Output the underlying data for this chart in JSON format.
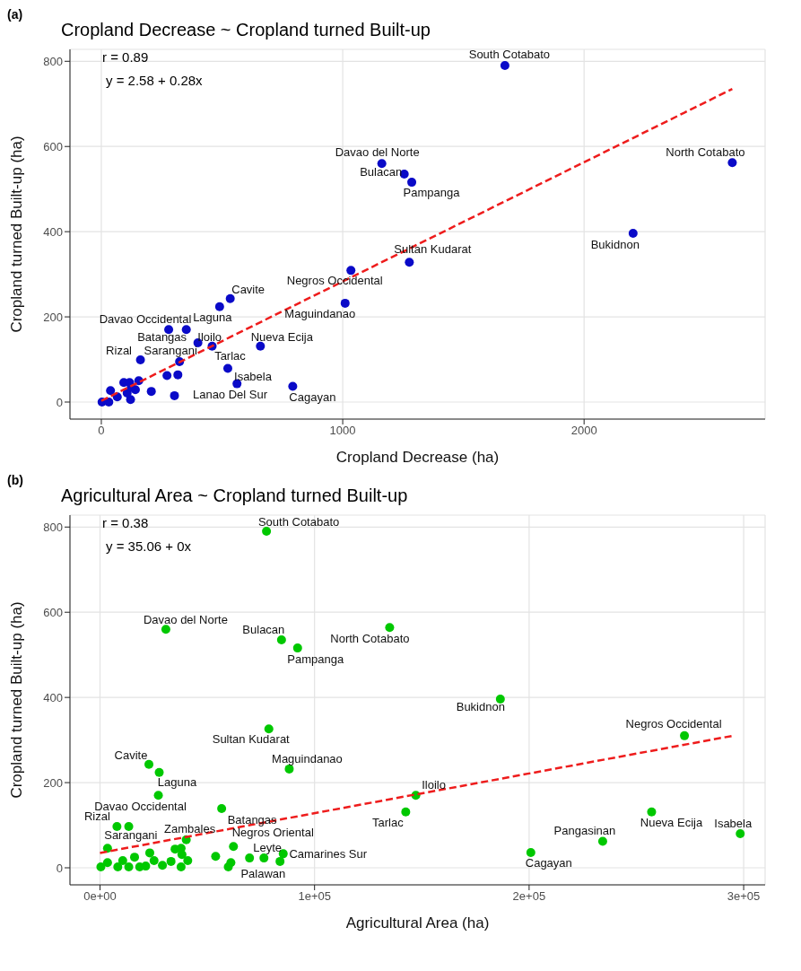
{
  "chart_data": [
    {
      "type": "scatter",
      "title": "Cropland Decrease ~ Cropland turned Built-up",
      "xlabel": "Cropland Decrease (ha)",
      "ylabel": "Cropland turned Built-up (ha)",
      "annotations": [
        "(a)",
        "r = 0.89",
        "y = 2.58 + 0.28x"
      ],
      "xlim": [
        -130,
        2750
      ],
      "ylim": [
        -40,
        828
      ],
      "xticks": [
        0,
        1000,
        2000
      ],
      "yticks": [
        0,
        200,
        400,
        600,
        800
      ],
      "grid": true,
      "marker": "circle",
      "series": [
        {
          "type": "scatter",
          "color": "#0a0ac8",
          "x": [
            1672,
            1162,
            1255,
            1286,
            2614,
            2203,
            1276,
            1034,
            1010,
            534,
            490,
            279,
            352,
            400,
            459,
            659,
            162,
            324,
            524,
            793,
            303,
            562,
            272,
            317,
            207,
            155,
            93,
            117,
            141,
            121,
            38,
            3,
            31,
            107,
            66,
            124
          ],
          "values": [
            790,
            560,
            535,
            516,
            562,
            396,
            328,
            309,
            232,
            243,
            224,
            170,
            170,
            139,
            131,
            131,
            99,
            95,
            79,
            37,
            15,
            43,
            62,
            64,
            25,
            50,
            46,
            46,
            29,
            6,
            27,
            0,
            0,
            21,
            12,
            35
          ],
          "value_labels": [
            "South Cotabato",
            "Davao del Norte",
            "Bulacan",
            "Pampanga",
            "North Cotabato",
            "Bukidnon",
            "Sultan Kudarat",
            "Negros Occidental",
            "Maguindanao",
            "Cavite",
            "Laguna",
            "Davao Occidental",
            "Iloilo",
            "Batangas",
            "Tarlac",
            "Nueva Ecija",
            "Rizal",
            "Sarangani",
            "Isabela",
            "Cagayan",
            "Lanao Del Sur",
            null,
            null,
            null,
            null,
            null,
            null,
            null,
            null,
            null,
            null,
            null,
            null,
            null,
            null,
            null
          ]
        },
        {
          "type": "line",
          "color": "#ee1c1c",
          "line_style": "dashed",
          "marker": "none",
          "x": [
            0,
            2614
          ],
          "values": [
            3,
            735
          ]
        }
      ]
    },
    {
      "type": "scatter",
      "title": "Agricultural Area ~ Cropland turned Built-up",
      "xlabel": "Agricultural Area (ha)",
      "ylabel": "Cropland turned Built-up (ha)",
      "annotations": [
        "(b)",
        "r = 0.38",
        "y = 35.06 + 0x"
      ],
      "xlim": [
        -14000,
        310000
      ],
      "ylim": [
        -40,
        828
      ],
      "xticks": [
        {
          "value": 0,
          "label": "0e+00"
        },
        {
          "value": 100000,
          "label": "1e+05"
        },
        {
          "value": 200000,
          "label": "2e+05"
        },
        {
          "value": 300000,
          "label": "3e+05"
        }
      ],
      "yticks": [
        0,
        200,
        400,
        600,
        800
      ],
      "grid": true,
      "marker": "circle",
      "series": [
        {
          "type": "scatter",
          "color": "#00c800",
          "x": [
            77600,
            30700,
            84600,
            92100,
            135000,
            186600,
            78700,
            272400,
            88200,
            22800,
            27600,
            27200,
            56700,
            147200,
            142500,
            257100,
            298400,
            234300,
            200800,
            7900,
            3500,
            40200,
            62200,
            69700,
            61000,
            85400,
            13400,
            59800,
            83900,
            76400,
            53900,
            400,
            3500,
            10600,
            16100,
            23200,
            33100,
            35000,
            37800,
            38200,
            40900,
            37800,
            8300,
            13400,
            18500,
            21300,
            25200,
            29100
          ],
          "values": [
            790,
            560,
            535,
            516,
            564,
            396,
            326,
            310,
            232,
            243,
            224,
            170,
            139,
            170,
            131,
            131,
            80,
            62,
            36,
            97,
            46,
            66,
            50,
            23,
            12,
            33,
            97,
            2,
            15,
            23,
            27,
            2,
            12,
            17,
            25,
            35,
            15,
            44,
            46,
            31,
            17,
            2,
            2,
            2,
            2,
            4,
            17,
            6
          ],
          "value_labels": [
            "South Cotabato",
            "Davao del Norte",
            "Bulacan",
            "Pampanga",
            "North Cotabato",
            "Bukidnon",
            "Sultan Kudarat",
            "Negros Occidental",
            "Maguindanao",
            "Cavite",
            "Laguna",
            "Davao Occidental",
            "Batangas",
            "Iloilo",
            "Tarlac",
            "Nueva Ecija",
            "Isabela",
            "Pangasinan",
            "Cagayan",
            "Rizal",
            "Sarangani",
            "Zambales",
            "Negros Oriental",
            "Leyte",
            "Palawan",
            "Camarines Sur",
            null,
            null,
            null,
            null,
            null,
            null,
            null,
            null,
            null,
            null,
            null,
            null,
            null,
            null,
            null,
            null,
            null,
            null,
            null,
            null,
            null,
            null
          ]
        },
        {
          "type": "line",
          "color": "#ee1c1c",
          "line_style": "dashed",
          "marker": "none",
          "x": [
            0,
            295000
          ],
          "values": [
            35,
            310
          ]
        }
      ]
    }
  ]
}
